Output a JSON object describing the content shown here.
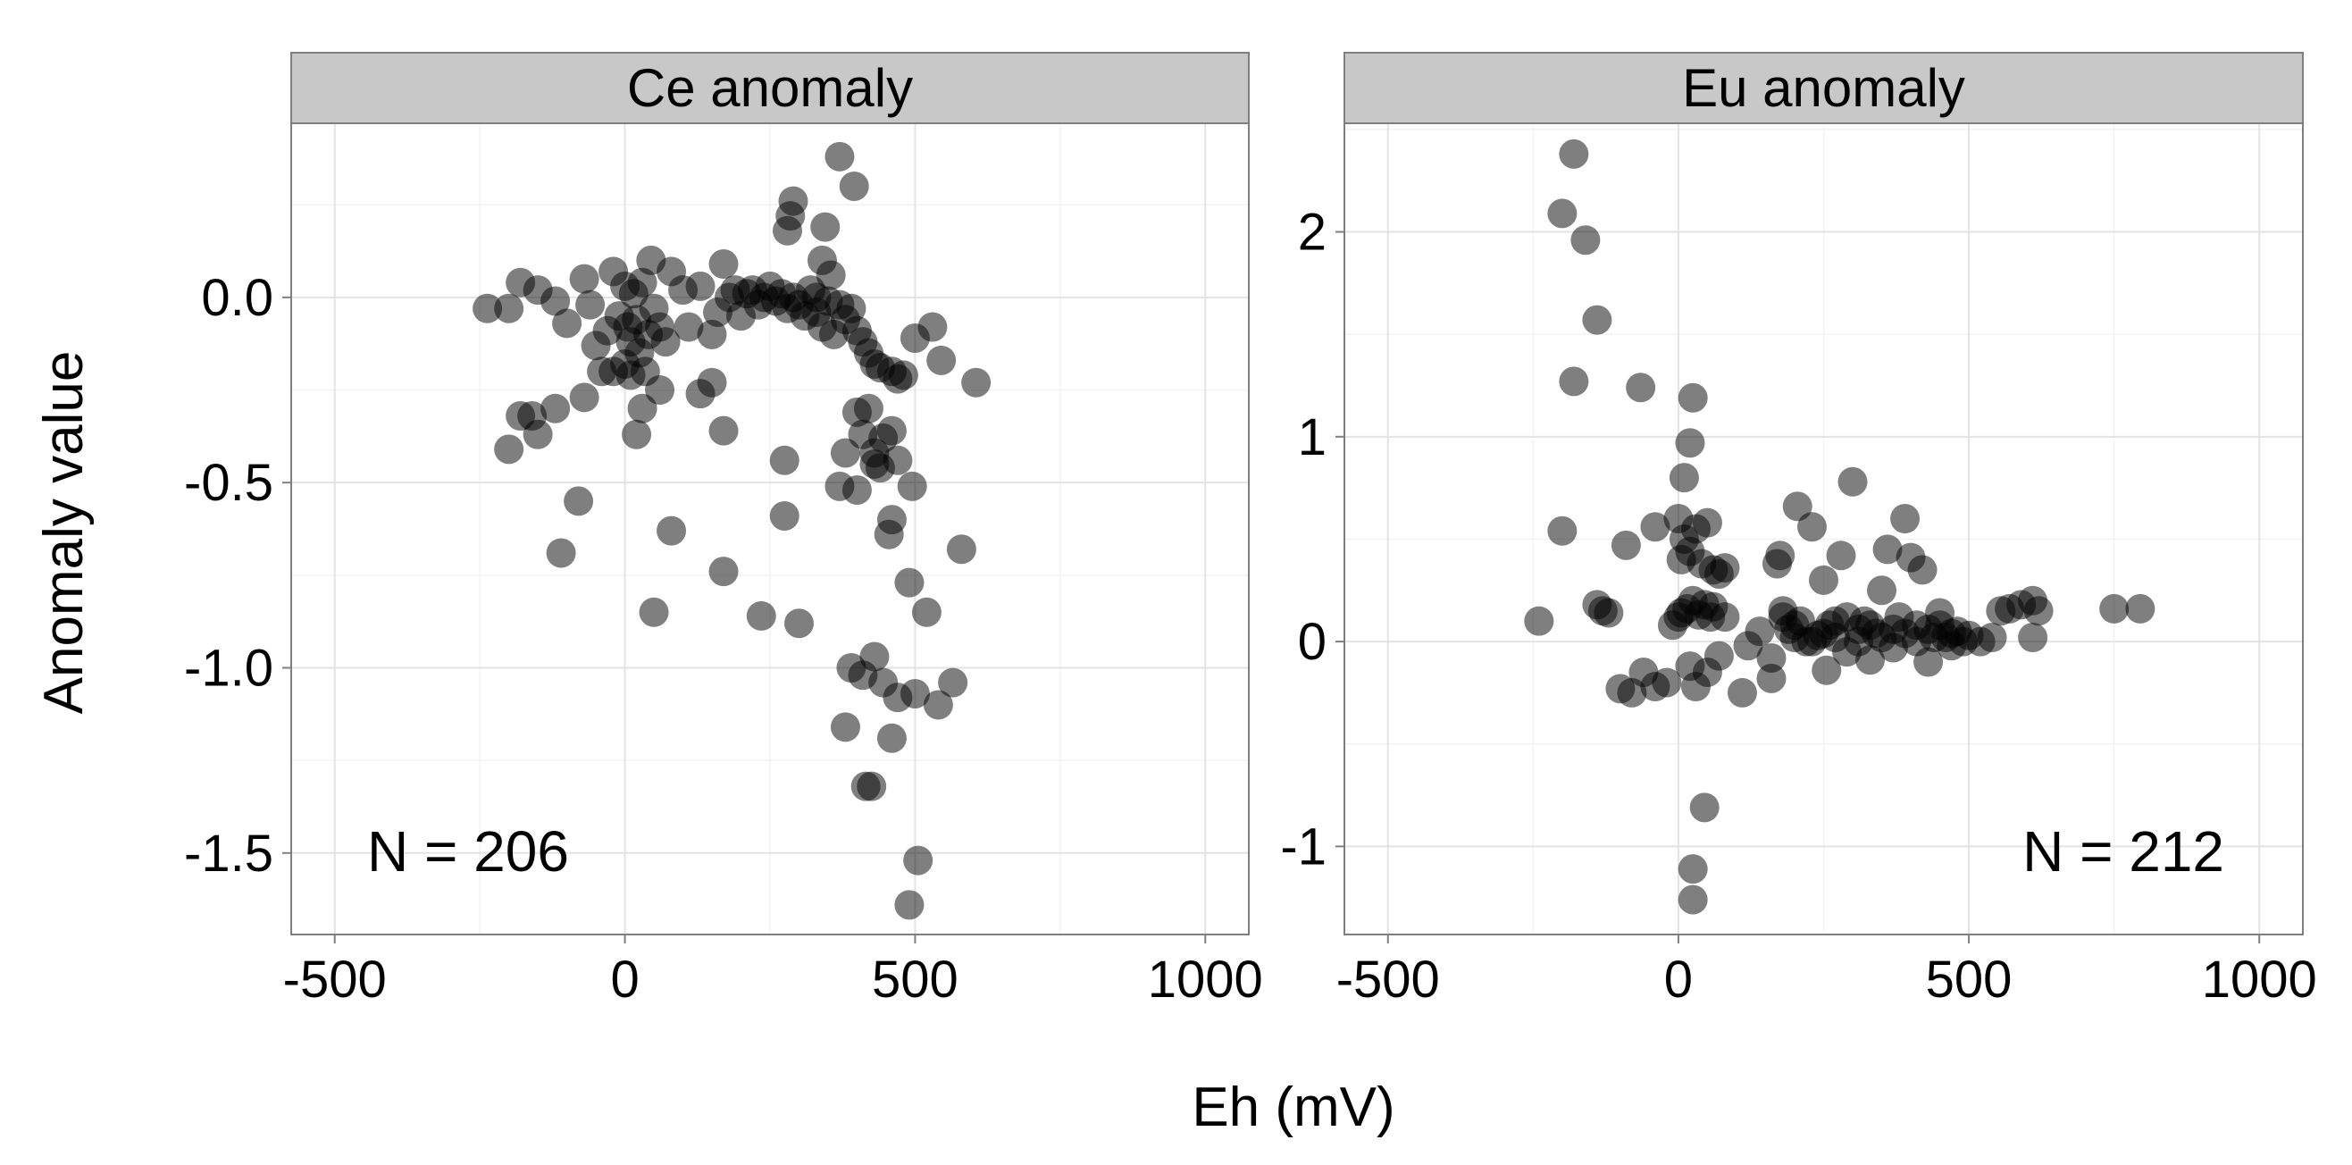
{
  "chart_data": {
    "type": "scatter",
    "xlabel": "Eh (mV)",
    "ylabel": "Anomaly value",
    "point_color": "#000000",
    "point_opacity": 0.5,
    "grid": true,
    "panels": [
      {
        "title": "Ce anomaly",
        "annotation": "N = 206",
        "annotation_position": "bottom-left",
        "xlim": [
          -575,
          1075
        ],
        "ylim": [
          -1.72,
          0.47
        ],
        "x_ticks": [
          -500,
          0,
          500,
          1000
        ],
        "x_tick_labels": [
          "-500",
          "0",
          "500",
          "1000"
        ],
        "y_ticks": [
          0.0,
          -0.5,
          -1.0,
          -1.5
        ],
        "y_tick_labels": [
          "0.0",
          "-0.5",
          "-1.0",
          "-1.5"
        ],
        "points": [
          [
            -237,
            -0.03
          ],
          [
            -200,
            -0.03
          ],
          [
            -180,
            0.04
          ],
          [
            -150,
            0.02
          ],
          [
            -120,
            -0.01
          ],
          [
            -100,
            -0.07
          ],
          [
            -70,
            0.05
          ],
          [
            -60,
            -0.02
          ],
          [
            -50,
            -0.13
          ],
          [
            -30,
            -0.09
          ],
          [
            -20,
            0.07
          ],
          [
            -10,
            -0.05
          ],
          [
            0,
            0.03
          ],
          [
            5,
            -0.08
          ],
          [
            10,
            -0.12
          ],
          [
            15,
            0.01
          ],
          [
            20,
            -0.06
          ],
          [
            25,
            -0.15
          ],
          [
            30,
            0.04
          ],
          [
            35,
            -0.2
          ],
          [
            40,
            -0.1
          ],
          [
            45,
            0.1
          ],
          [
            50,
            -0.03
          ],
          [
            60,
            -0.08
          ],
          [
            70,
            -0.12
          ],
          [
            80,
            0.07
          ],
          [
            100,
            0.02
          ],
          [
            110,
            -0.08
          ],
          [
            130,
            0.03
          ],
          [
            150,
            -0.1
          ],
          [
            160,
            -0.04
          ],
          [
            170,
            0.09
          ],
          [
            180,
            0.0
          ],
          [
            190,
            0.02
          ],
          [
            200,
            -0.05
          ],
          [
            210,
            0.01
          ],
          [
            220,
            0.02
          ],
          [
            230,
            -0.02
          ],
          [
            240,
            0.0
          ],
          [
            250,
            0.03
          ],
          [
            260,
            -0.01
          ],
          [
            270,
            0.01
          ],
          [
            280,
            -0.03
          ],
          [
            290,
            0.0
          ],
          [
            300,
            -0.02
          ],
          [
            310,
            -0.05
          ],
          [
            320,
            0.02
          ],
          [
            330,
            -0.04
          ],
          [
            340,
            -0.08
          ],
          [
            350,
            -0.01
          ],
          [
            360,
            -0.1
          ],
          [
            370,
            -0.02
          ],
          [
            380,
            -0.06
          ],
          [
            390,
            -0.03
          ],
          [
            400,
            -0.09
          ],
          [
            410,
            -0.12
          ],
          [
            420,
            -0.15
          ],
          [
            430,
            -0.18
          ],
          [
            440,
            -0.19
          ],
          [
            460,
            -0.2
          ],
          [
            470,
            -0.22
          ],
          [
            480,
            -0.21
          ],
          [
            500,
            -0.11
          ],
          [
            530,
            -0.08
          ],
          [
            545,
            -0.17
          ],
          [
            605,
            -0.23
          ],
          [
            -20,
            -0.2
          ],
          [
            0,
            -0.18
          ],
          [
            10,
            -0.21
          ],
          [
            -40,
            -0.2
          ],
          [
            -70,
            -0.27
          ],
          [
            -200,
            -0.41
          ],
          [
            -180,
            -0.32
          ],
          [
            -160,
            -0.32
          ],
          [
            -150,
            -0.37
          ],
          [
            -120,
            -0.3
          ],
          [
            -110,
            -0.69
          ],
          [
            -80,
            -0.55
          ],
          [
            20,
            -0.37
          ],
          [
            30,
            -0.3
          ],
          [
            60,
            -0.25
          ],
          [
            80,
            -0.63
          ],
          [
            50,
            -0.85
          ],
          [
            130,
            -0.26
          ],
          [
            150,
            -0.23
          ],
          [
            170,
            -0.36
          ],
          [
            170,
            -0.74
          ],
          [
            235,
            -0.86
          ],
          [
            275,
            -0.44
          ],
          [
            275,
            -0.59
          ],
          [
            300,
            -0.88
          ],
          [
            290,
            0.26
          ],
          [
            285,
            0.22
          ],
          [
            280,
            0.18
          ],
          [
            345,
            0.19
          ],
          [
            370,
            0.38
          ],
          [
            395,
            0.3
          ],
          [
            340,
            0.1
          ],
          [
            355,
            0.06
          ],
          [
            330,
            0.0
          ],
          [
            380,
            -0.42
          ],
          [
            370,
            -0.51
          ],
          [
            400,
            -0.31
          ],
          [
            410,
            -0.37
          ],
          [
            420,
            -0.3
          ],
          [
            430,
            -0.45
          ],
          [
            440,
            -0.46
          ],
          [
            460,
            -0.36
          ],
          [
            470,
            -0.44
          ],
          [
            400,
            -0.52
          ],
          [
            430,
            -0.42
          ],
          [
            445,
            -0.38
          ],
          [
            460,
            -0.6
          ],
          [
            455,
            -0.64
          ],
          [
            490,
            -0.77
          ],
          [
            495,
            -0.51
          ],
          [
            520,
            -0.85
          ],
          [
            580,
            -0.68
          ],
          [
            390,
            -1.0
          ],
          [
            410,
            -1.02
          ],
          [
            430,
            -0.97
          ],
          [
            445,
            -1.04
          ],
          [
            470,
            -1.08
          ],
          [
            500,
            -1.07
          ],
          [
            540,
            -1.1
          ],
          [
            565,
            -1.04
          ],
          [
            460,
            -1.19
          ],
          [
            380,
            -1.16
          ],
          [
            415,
            -1.32
          ],
          [
            425,
            -1.32
          ],
          [
            505,
            -1.52
          ],
          [
            490,
            -1.64
          ]
        ]
      },
      {
        "title": "Eu anomaly",
        "annotation": "N = 212",
        "annotation_position": "bottom-right",
        "xlim": [
          -575,
          1075
        ],
        "ylim": [
          -1.43,
          2.53
        ],
        "x_ticks": [
          -500,
          0,
          500,
          1000
        ],
        "x_tick_labels": [
          "-500",
          "0",
          "500",
          "1000"
        ],
        "y_ticks": [
          2,
          1,
          0,
          -1
        ],
        "y_tick_labels": [
          "2",
          "1",
          "0",
          "-1"
        ],
        "points": [
          [
            -180,
            2.38
          ],
          [
            -200,
            2.09
          ],
          [
            -160,
            1.96
          ],
          [
            -140,
            1.57
          ],
          [
            -180,
            1.27
          ],
          [
            -65,
            1.24
          ],
          [
            25,
            1.19
          ],
          [
            20,
            0.97
          ],
          [
            10,
            0.8
          ],
          [
            -200,
            0.54
          ],
          [
            -90,
            0.47
          ],
          [
            -40,
            0.56
          ],
          [
            0,
            0.6
          ],
          [
            10,
            0.5
          ],
          [
            30,
            0.55
          ],
          [
            50,
            0.58
          ],
          [
            20,
            0.44
          ],
          [
            40,
            0.38
          ],
          [
            5,
            0.4
          ],
          [
            60,
            0.35
          ],
          [
            70,
            0.33
          ],
          [
            80,
            0.36
          ],
          [
            -240,
            0.1
          ],
          [
            -140,
            0.18
          ],
          [
            -130,
            0.15
          ],
          [
            -120,
            0.14
          ],
          [
            -100,
            -0.23
          ],
          [
            -80,
            -0.25
          ],
          [
            -60,
            -0.15
          ],
          [
            -40,
            -0.22
          ],
          [
            -20,
            -0.2
          ],
          [
            0,
            0.12
          ],
          [
            -10,
            0.08
          ],
          [
            5,
            0.14
          ],
          [
            15,
            0.16
          ],
          [
            25,
            0.2
          ],
          [
            35,
            0.13
          ],
          [
            45,
            0.18
          ],
          [
            55,
            0.12
          ],
          [
            60,
            0.17
          ],
          [
            20,
            -0.12
          ],
          [
            30,
            -0.22
          ],
          [
            50,
            -0.15
          ],
          [
            70,
            -0.07
          ],
          [
            80,
            0.12
          ],
          [
            110,
            -0.25
          ],
          [
            120,
            -0.02
          ],
          [
            140,
            0.05
          ],
          [
            160,
            -0.08
          ],
          [
            170,
            0.38
          ],
          [
            175,
            0.42
          ],
          [
            180,
            0.12
          ],
          [
            190,
            0.06
          ],
          [
            200,
            0.02
          ],
          [
            205,
            0.66
          ],
          [
            220,
            0.0
          ],
          [
            230,
            0.56
          ],
          [
            240,
            0.03
          ],
          [
            250,
            0.3
          ],
          [
            255,
            -0.14
          ],
          [
            260,
            0.08
          ],
          [
            270,
            0.02
          ],
          [
            280,
            0.42
          ],
          [
            290,
            -0.05
          ],
          [
            300,
            0.78
          ],
          [
            310,
            0.06
          ],
          [
            320,
            0.1
          ],
          [
            330,
            -0.09
          ],
          [
            340,
            0.04
          ],
          [
            350,
            0.25
          ],
          [
            360,
            0.45
          ],
          [
            370,
            -0.03
          ],
          [
            380,
            0.12
          ],
          [
            390,
            0.6
          ],
          [
            400,
            0.41
          ],
          [
            410,
            0.08
          ],
          [
            420,
            0.35
          ],
          [
            430,
            -0.1
          ],
          [
            440,
            0.02
          ],
          [
            450,
            0.14
          ],
          [
            460,
            0.02
          ],
          [
            470,
            -0.02
          ],
          [
            480,
            0.05
          ],
          [
            490,
            0.0
          ],
          [
            500,
            0.03
          ],
          [
            520,
            0.0
          ],
          [
            540,
            0.02
          ],
          [
            555,
            0.15
          ],
          [
            570,
            0.16
          ],
          [
            590,
            0.18
          ],
          [
            610,
            0.2
          ],
          [
            620,
            0.15
          ],
          [
            610,
            0.02
          ],
          [
            750,
            0.16
          ],
          [
            795,
            0.16
          ],
          [
            160,
            -0.18
          ],
          [
            180,
            0.15
          ],
          [
            200,
            0.08
          ],
          [
            210,
            0.1
          ],
          [
            230,
            0.0
          ],
          [
            250,
            0.04
          ],
          [
            270,
            0.1
          ],
          [
            290,
            0.12
          ],
          [
            310,
            0.0
          ],
          [
            330,
            0.08
          ],
          [
            350,
            0.02
          ],
          [
            370,
            0.06
          ],
          [
            390,
            0.04
          ],
          [
            410,
            0.0
          ],
          [
            430,
            0.06
          ],
          [
            450,
            0.08
          ],
          [
            470,
            0.04
          ],
          [
            45,
            -0.81
          ],
          [
            25,
            -1.11
          ],
          [
            25,
            -1.26
          ]
        ]
      }
    ]
  }
}
